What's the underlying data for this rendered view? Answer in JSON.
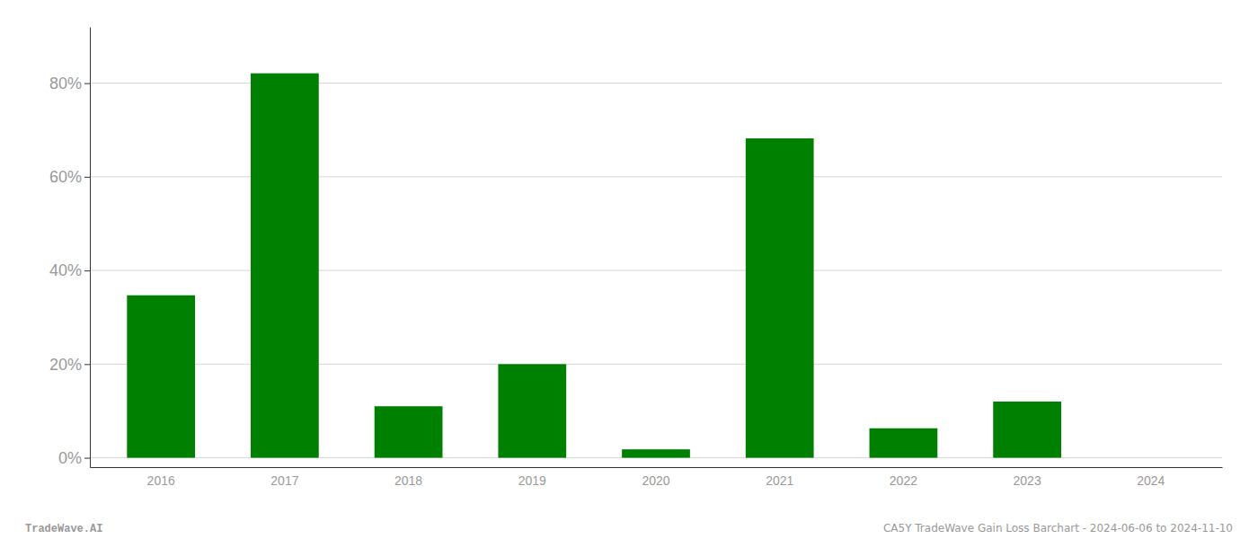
{
  "chart_data": {
    "type": "bar",
    "categories": [
      "2016",
      "2017",
      "2018",
      "2019",
      "2020",
      "2021",
      "2022",
      "2023",
      "2024"
    ],
    "values": [
      0.347,
      0.821,
      0.11,
      0.2,
      0.018,
      0.682,
      0.063,
      0.12,
      0.0
    ],
    "color": "#008000",
    "ylim": [
      -0.02,
      0.92
    ],
    "yticks": [
      {
        "value": 0.0,
        "label": "0%"
      },
      {
        "value": 0.2,
        "label": "20%"
      },
      {
        "value": 0.4,
        "label": "40%"
      },
      {
        "value": 0.6,
        "label": "60%"
      },
      {
        "value": 0.8,
        "label": "80%"
      }
    ],
    "grid": true,
    "annotations": [
      "TradeWave.AI",
      "CA5Y TradeWave Gain Loss Barchart - 2024-06-06 to 2024-11-10"
    ]
  }
}
